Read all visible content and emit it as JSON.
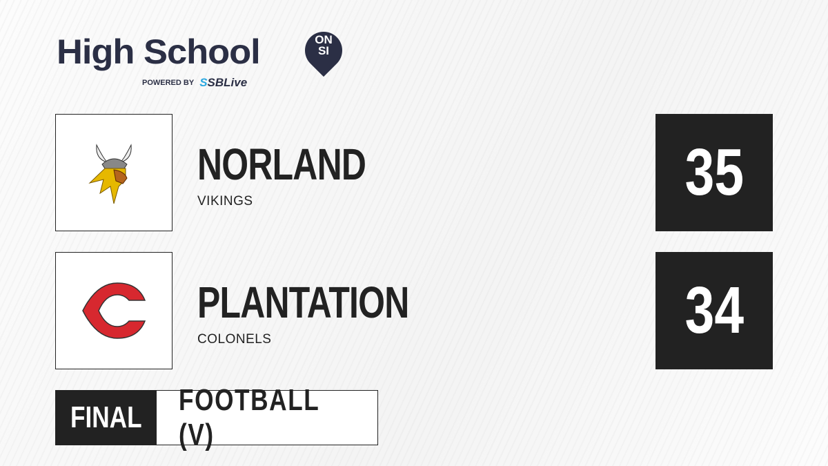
{
  "brand": {
    "title": "High School",
    "badge_top": "ON",
    "badge_bottom": "SI",
    "powered_by": "POWERED BY",
    "partner_prefix": "S",
    "partner": "SBLive",
    "accent": "#2aa8e0",
    "navy": "#2b2f45"
  },
  "teams": [
    {
      "name": "NORLAND",
      "mascot": "VIKINGS",
      "score": "35",
      "logo_icon": "viking-head-icon"
    },
    {
      "name": "PLANTATION",
      "mascot": "COLONELS",
      "score": "34",
      "logo_icon": "letter-c-icon"
    }
  ],
  "game": {
    "status": "FINAL",
    "sport": "FOOTBALL (V)"
  }
}
